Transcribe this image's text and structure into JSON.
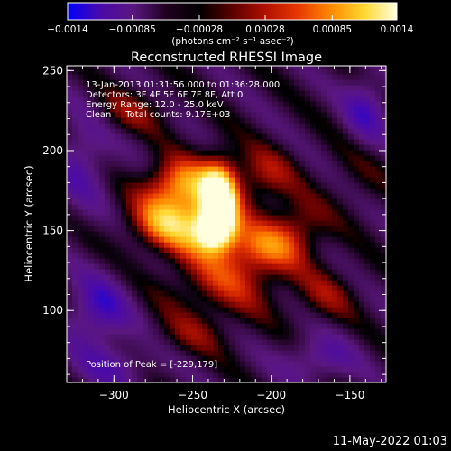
{
  "chart_data": {
    "type": "heatmap",
    "title": "Reconstructed RHESSI Image",
    "xlabel": "Heliocentric X (arcsec)",
    "ylabel": "Heliocentric Y (arcsec)",
    "xlim": [
      -330,
      -127
    ],
    "ylim": [
      55,
      253
    ],
    "xticks": [
      -300,
      -250,
      -200,
      -150
    ],
    "yticks": [
      100,
      150,
      200,
      250
    ],
    "xtick_labels": [
      "−300",
      "−250",
      "−200",
      "−150"
    ],
    "ytick_labels": [
      "100",
      "150",
      "200",
      "250"
    ],
    "colorbar": {
      "ticks": [
        -0.0014,
        -0.00085,
        -0.00028,
        0.00028,
        0.00085,
        0.0014
      ],
      "tick_labels": [
        "−0.0014",
        "−0.00085",
        "−0.00028",
        "0.00028",
        "0.00085",
        "0.0014"
      ],
      "unit_label": "(photons cm⁻² s⁻¹ asec⁻²)",
      "colors": [
        "#0000ff",
        "#4b0aa8",
        "#5a1780",
        "#200020",
        "#000000",
        "#5a0000",
        "#b01000",
        "#e83800",
        "#ff8a00",
        "#ffd830",
        "#ffffe0"
      ]
    },
    "annotations": [
      "13-Jan-2013 01:31:56.000 to 01:36:28.000",
      "Detectors: 3F 4F 5F 6F 7F 8F, Att 0",
      "Energy Range: 12.0 - 25.0 keV",
      "Clean     Total counts: 9.17E+03",
      "Position of Peak = [-229,179]"
    ],
    "peak": {
      "x": -229,
      "y": 179
    },
    "blobs": [
      {
        "x": -233,
        "y": 172,
        "sx": 8,
        "sy": 16,
        "v": 1.0
      },
      {
        "x": -236,
        "y": 150,
        "sx": 9,
        "sy": 9,
        "v": 0.9
      },
      {
        "x": -248,
        "y": 162,
        "sx": 18,
        "sy": 20,
        "v": 0.65
      },
      {
        "x": -270,
        "y": 155,
        "sx": 16,
        "sy": 12,
        "v": 0.55
      },
      {
        "x": -262,
        "y": 180,
        "sx": 14,
        "sy": 10,
        "v": 0.5
      },
      {
        "x": -210,
        "y": 138,
        "sx": 16,
        "sy": 12,
        "v": 0.55
      },
      {
        "x": -185,
        "y": 150,
        "sx": 14,
        "sy": 14,
        "v": 0.45
      },
      {
        "x": -230,
        "y": 115,
        "sx": 25,
        "sy": 14,
        "v": 0.4
      },
      {
        "x": -205,
        "y": 185,
        "sx": 14,
        "sy": 12,
        "v": 0.4
      },
      {
        "x": -290,
        "y": 225,
        "sx": 18,
        "sy": 10,
        "v": 0.3
      },
      {
        "x": -165,
        "y": 110,
        "sx": 14,
        "sy": 12,
        "v": 0.3
      },
      {
        "x": -250,
        "y": 85,
        "sx": 18,
        "sy": 10,
        "v": 0.25
      },
      {
        "x": -145,
        "y": 190,
        "sx": 14,
        "sy": 20,
        "v": 0.15
      },
      {
        "x": -310,
        "y": 100,
        "sx": 14,
        "sy": 16,
        "v": -0.55
      },
      {
        "x": -140,
        "y": 225,
        "sx": 10,
        "sy": 16,
        "v": -0.5
      },
      {
        "x": -320,
        "y": 195,
        "sx": 12,
        "sy": 22,
        "v": -0.4
      },
      {
        "x": -170,
        "y": 70,
        "sx": 16,
        "sy": 10,
        "v": -0.4
      },
      {
        "x": -300,
        "y": 65,
        "sx": 18,
        "sy": 10,
        "v": -0.35
      }
    ]
  },
  "footer": {
    "timestamp": "11-May-2022 01:03"
  }
}
